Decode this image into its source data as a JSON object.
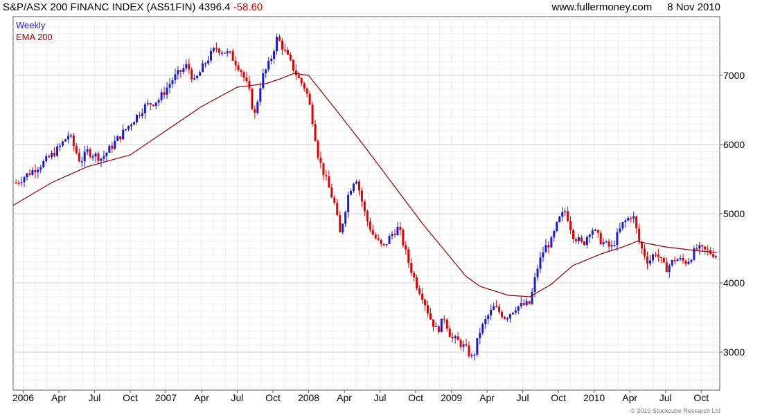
{
  "header": {
    "title": "S&P/ASX 200 FINANC INDEX (AS51FIN) 4396.4",
    "change": "-58.60",
    "website": "www.fullermoney.com",
    "date": "8 Nov 2010"
  },
  "footer": {
    "copyright": "© 2010 Stockcube Research Ltd"
  },
  "chart_data": {
    "type": "line",
    "title": "S&P/ASX 200 FINANC INDEX (AS51FIN) 4396.4 -58.60",
    "legend": [
      {
        "name": "Weekly",
        "color": "#1a1ad6"
      },
      {
        "name": "EMA 200",
        "color": "#a00000"
      }
    ],
    "legend_position": "top-left",
    "grid": true,
    "up_color": "#1a1ad6",
    "down_color": "#e00000",
    "ema_color": "#8b0000",
    "x_tick_labels": [
      "2006",
      "Apr",
      "Jul",
      "Oct",
      "2007",
      "Apr",
      "Jul",
      "Oct",
      "2008",
      "Apr",
      "Jul",
      "Oct",
      "2009",
      "Apr",
      "Jul",
      "Oct",
      "2010",
      "Apr",
      "Jul",
      "Oct"
    ],
    "x_range": [
      2005.93,
      2010.88
    ],
    "y_ticks": [
      3000,
      4000,
      5000,
      6000,
      7000
    ],
    "y_range": [
      2450,
      7850
    ],
    "weekly_close": [
      [
        2005.95,
        5450
      ],
      [
        2006.05,
        5600
      ],
      [
        2006.15,
        5750
      ],
      [
        2006.25,
        5950
      ],
      [
        2006.32,
        6150
      ],
      [
        2006.4,
        5750
      ],
      [
        2006.45,
        5900
      ],
      [
        2006.55,
        5800
      ],
      [
        2006.65,
        6050
      ],
      [
        2006.75,
        6300
      ],
      [
        2006.85,
        6550
      ],
      [
        2006.95,
        6650
      ],
      [
        2007.05,
        6950
      ],
      [
        2007.15,
        7150
      ],
      [
        2007.2,
        6900
      ],
      [
        2007.28,
        7200
      ],
      [
        2007.35,
        7400
      ],
      [
        2007.45,
        7300
      ],
      [
        2007.52,
        7100
      ],
      [
        2007.58,
        6800
      ],
      [
        2007.62,
        6400
      ],
      [
        2007.67,
        6950
      ],
      [
        2007.73,
        7200
      ],
      [
        2007.78,
        7550
      ],
      [
        2007.82,
        7400
      ],
      [
        2007.88,
        7150
      ],
      [
        2007.93,
        6950
      ],
      [
        2007.98,
        6800
      ],
      [
        2008.02,
        6450
      ],
      [
        2008.07,
        5800
      ],
      [
        2008.12,
        5500
      ],
      [
        2008.18,
        5150
      ],
      [
        2008.22,
        4700
      ],
      [
        2008.28,
        5300
      ],
      [
        2008.33,
        5550
      ],
      [
        2008.4,
        4950
      ],
      [
        2008.45,
        4700
      ],
      [
        2008.52,
        4500
      ],
      [
        2008.58,
        4700
      ],
      [
        2008.63,
        4800
      ],
      [
        2008.7,
        4300
      ],
      [
        2008.75,
        4000
      ],
      [
        2008.8,
        3800
      ],
      [
        2008.85,
        3500
      ],
      [
        2008.9,
        3300
      ],
      [
        2008.95,
        3500
      ],
      [
        2009.0,
        3200
      ],
      [
        2009.05,
        3150
      ],
      [
        2009.1,
        3050
      ],
      [
        2009.15,
        2900
      ],
      [
        2009.2,
        3300
      ],
      [
        2009.25,
        3500
      ],
      [
        2009.3,
        3650
      ],
      [
        2009.38,
        3500
      ],
      [
        2009.45,
        3650
      ],
      [
        2009.55,
        3700
      ],
      [
        2009.6,
        4200
      ],
      [
        2009.65,
        4500
      ],
      [
        2009.7,
        4600
      ],
      [
        2009.75,
        4900
      ],
      [
        2009.8,
        5050
      ],
      [
        2009.85,
        4700
      ],
      [
        2009.92,
        4550
      ],
      [
        2009.98,
        4800
      ],
      [
        2010.05,
        4600
      ],
      [
        2010.12,
        4500
      ],
      [
        2010.2,
        4850
      ],
      [
        2010.27,
        5000
      ],
      [
        2010.32,
        4550
      ],
      [
        2010.38,
        4300
      ],
      [
        2010.43,
        4450
      ],
      [
        2010.5,
        4200
      ],
      [
        2010.57,
        4350
      ],
      [
        2010.65,
        4300
      ],
      [
        2010.72,
        4500
      ],
      [
        2010.8,
        4450
      ],
      [
        2010.86,
        4400
      ]
    ],
    "ema_200": [
      [
        2005.93,
        5120
      ],
      [
        2006.2,
        5450
      ],
      [
        2006.45,
        5680
      ],
      [
        2006.75,
        5850
      ],
      [
        2007.0,
        6200
      ],
      [
        2007.25,
        6550
      ],
      [
        2007.5,
        6830
      ],
      [
        2007.7,
        6880
      ],
      [
        2007.8,
        6950
      ],
      [
        2007.9,
        7030
      ],
      [
        2008.0,
        7000
      ],
      [
        2008.2,
        6480
      ],
      [
        2008.4,
        5950
      ],
      [
        2008.6,
        5400
      ],
      [
        2008.8,
        4850
      ],
      [
        2009.0,
        4350
      ],
      [
        2009.1,
        4100
      ],
      [
        2009.2,
        3950
      ],
      [
        2009.4,
        3820
      ],
      [
        2009.55,
        3800
      ],
      [
        2009.7,
        3980
      ],
      [
        2009.85,
        4250
      ],
      [
        2010.05,
        4420
      ],
      [
        2010.2,
        4520
      ],
      [
        2010.3,
        4600
      ],
      [
        2010.5,
        4520
      ],
      [
        2010.7,
        4470
      ],
      [
        2010.86,
        4440
      ]
    ]
  }
}
